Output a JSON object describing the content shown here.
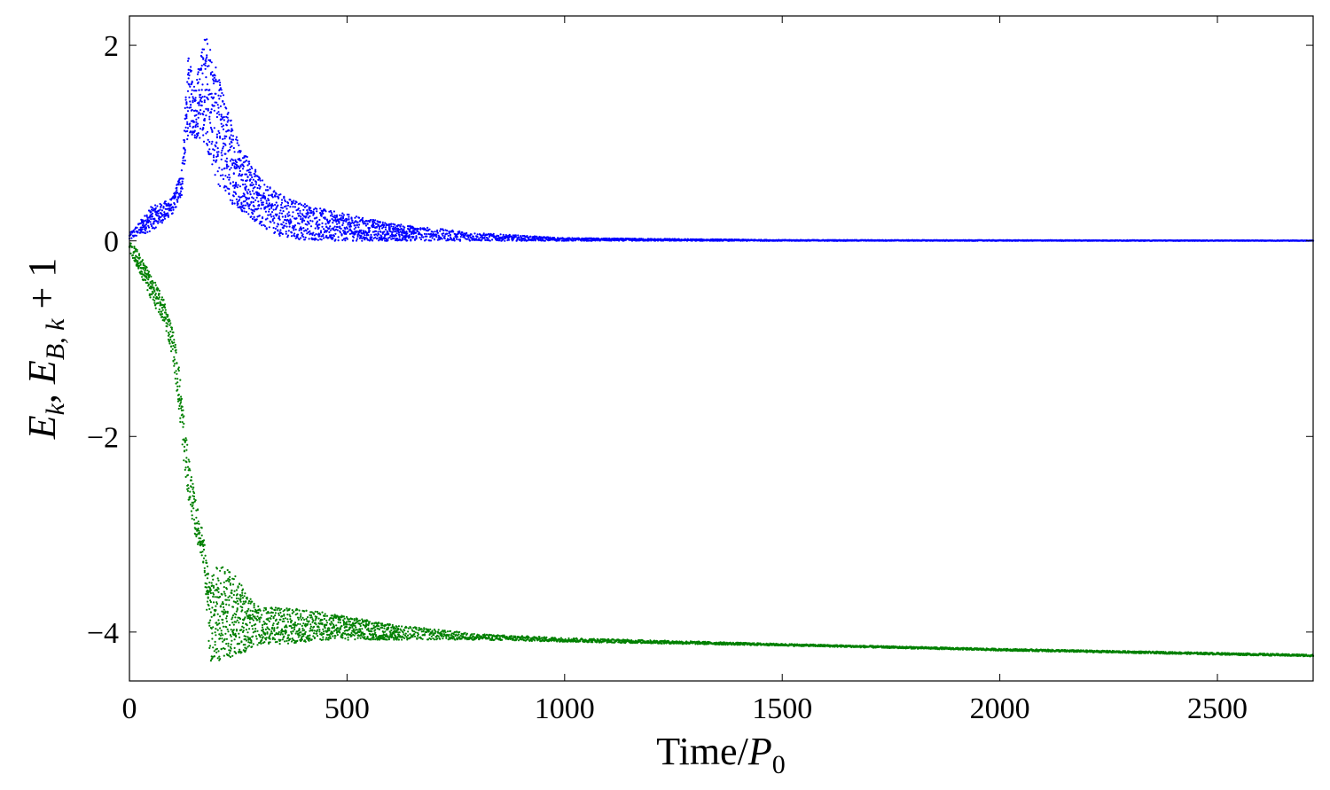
{
  "chart_data": {
    "type": "scatter",
    "xlabel": {
      "prefix": "Time/",
      "var": "P",
      "sub": "0"
    },
    "ylabel": {
      "e1_sub": "k",
      "e2_sub": "B, k",
      "tail": " + 1"
    },
    "xlim": [
      0,
      2720
    ],
    "ylim": [
      -4.5,
      2.3
    ],
    "xticks": [
      0,
      500,
      1000,
      1500,
      2000,
      2500
    ],
    "yticks": [
      2,
      0,
      -2,
      -4
    ],
    "ytick_labels": [
      "2",
      "0",
      "−2",
      "−4"
    ],
    "grid": false,
    "legend": "none",
    "series": [
      {
        "color": "#0000ff",
        "marker": "dot",
        "envelope": [
          {
            "t": 0,
            "lo": 0.0,
            "hi": 0.08
          },
          {
            "t": 20,
            "lo": 0.05,
            "hi": 0.18
          },
          {
            "t": 50,
            "lo": 0.1,
            "hi": 0.35
          },
          {
            "t": 80,
            "lo": 0.2,
            "hi": 0.4
          },
          {
            "t": 100,
            "lo": 0.28,
            "hi": 0.45
          },
          {
            "t": 120,
            "lo": 0.45,
            "hi": 0.75
          },
          {
            "t": 135,
            "lo": 1.1,
            "hi": 1.9
          },
          {
            "t": 150,
            "lo": 1.05,
            "hi": 1.6
          },
          {
            "t": 175,
            "lo": 1.0,
            "hi": 2.15
          },
          {
            "t": 200,
            "lo": 0.6,
            "hi": 1.75
          },
          {
            "t": 230,
            "lo": 0.4,
            "hi": 1.3
          },
          {
            "t": 260,
            "lo": 0.3,
            "hi": 0.95
          },
          {
            "t": 300,
            "lo": 0.15,
            "hi": 0.65
          },
          {
            "t": 360,
            "lo": 0.02,
            "hi": 0.45
          },
          {
            "t": 450,
            "lo": 0.0,
            "hi": 0.32
          },
          {
            "t": 600,
            "lo": 0.0,
            "hi": 0.18
          },
          {
            "t": 800,
            "lo": 0.0,
            "hi": 0.08
          },
          {
            "t": 1000,
            "lo": 0.0,
            "hi": 0.03
          },
          {
            "t": 1500,
            "lo": 0.0,
            "hi": 0.01
          },
          {
            "t": 2720,
            "lo": 0.0,
            "hi": 0.005
          }
        ]
      },
      {
        "color": "#008000",
        "marker": "dot",
        "envelope": [
          {
            "t": 0,
            "lo": -0.1,
            "hi": 0.0
          },
          {
            "t": 20,
            "lo": -0.3,
            "hi": -0.1
          },
          {
            "t": 50,
            "lo": -0.6,
            "hi": -0.35
          },
          {
            "t": 80,
            "lo": -0.85,
            "hi": -0.6
          },
          {
            "t": 100,
            "lo": -1.2,
            "hi": -0.9
          },
          {
            "t": 115,
            "lo": -1.8,
            "hi": -1.3
          },
          {
            "t": 130,
            "lo": -2.5,
            "hi": -2.0
          },
          {
            "t": 150,
            "lo": -3.0,
            "hi": -2.6
          },
          {
            "t": 170,
            "lo": -3.3,
            "hi": -3.0
          },
          {
            "t": 185,
            "lo": -4.3,
            "hi": -3.5
          },
          {
            "t": 200,
            "lo": -4.3,
            "hi": -3.3
          },
          {
            "t": 240,
            "lo": -4.25,
            "hi": -3.4
          },
          {
            "t": 270,
            "lo": -4.2,
            "hi": -3.6
          },
          {
            "t": 300,
            "lo": -4.12,
            "hi": -3.75
          },
          {
            "t": 360,
            "lo": -4.12,
            "hi": -3.75
          },
          {
            "t": 450,
            "lo": -4.08,
            "hi": -3.8
          },
          {
            "t": 600,
            "lo": -4.08,
            "hi": -3.92
          },
          {
            "t": 800,
            "lo": -4.08,
            "hi": -4.02
          },
          {
            "t": 1000,
            "lo": -4.1,
            "hi": -4.06
          },
          {
            "t": 1500,
            "lo": -4.14,
            "hi": -4.12
          },
          {
            "t": 2000,
            "lo": -4.19,
            "hi": -4.17
          },
          {
            "t": 2720,
            "lo": -4.25,
            "hi": -4.23
          }
        ]
      }
    ]
  }
}
